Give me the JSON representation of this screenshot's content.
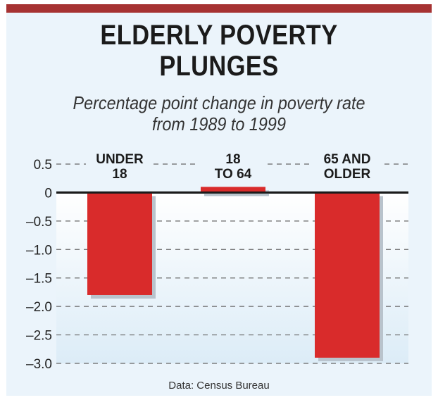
{
  "header": {
    "title_line1": "ELDERLY POVERTY",
    "title_line2": "PLUNGES",
    "subtitle_line1": "Percentage point change in poverty rate",
    "subtitle_line2": "from 1989 to 1999"
  },
  "colors": {
    "bar": "#d92b2b",
    "top_bar": "#a63232",
    "background": "#ebf4fb"
  },
  "chart_data": {
    "type": "bar",
    "title": "ELDERLY POVERTY PLUNGES",
    "subtitle": "Percentage point change in poverty rate from 1989 to 1999",
    "categories": [
      [
        "UNDER",
        "18"
      ],
      [
        "18",
        "TO 64"
      ],
      [
        "65 AND",
        "OLDER"
      ]
    ],
    "values": [
      -1.8,
      0.1,
      -2.9
    ],
    "ylim": [
      -3.0,
      0.5
    ],
    "yticks": [
      "0.5",
      "0",
      "–0.5",
      "–1.0",
      "–1.5",
      "–2.0",
      "–2.5",
      "–3.0"
    ],
    "ytick_values": [
      0.5,
      0,
      -0.5,
      -1.0,
      -1.5,
      -2.0,
      -2.5,
      -3.0
    ],
    "grid": true,
    "source": "Data: Census Bureau"
  }
}
